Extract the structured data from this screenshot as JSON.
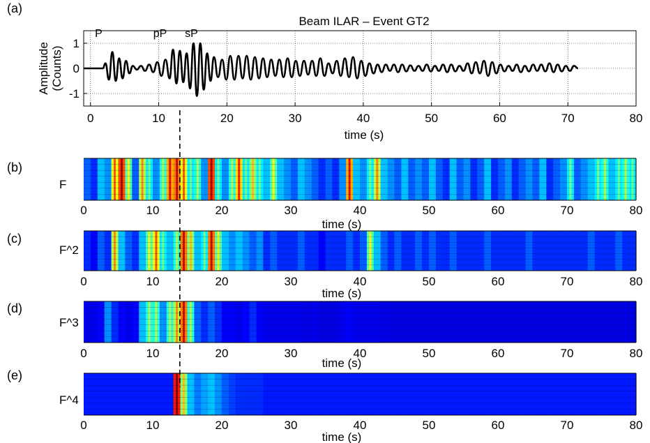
{
  "figure": {
    "dashed_marker_time": 13.1
  },
  "chart_data": [
    {
      "panel_label": "(a)",
      "type": "line",
      "title": "Beam ILAR – Event GT2",
      "xlabel": "time  (s)",
      "ylabel_lines": [
        "Amplitude",
        "(Counts)"
      ],
      "xlim": [
        -1,
        80
      ],
      "ylim": [
        -1.5,
        1.5
      ],
      "xticks": [
        0,
        10,
        20,
        30,
        40,
        50,
        60,
        70,
        80
      ],
      "yticks": [
        -1,
        0,
        1
      ],
      "grid": true,
      "annotations": [
        {
          "text": "P",
          "x": 1.2,
          "y": 1.2
        },
        {
          "text": "pP",
          "x": 10.2,
          "y": 1.2
        },
        {
          "text": "sP",
          "x": 14.8,
          "y": 1.2
        }
      ],
      "series": [
        {
          "color": "#000000",
          "x": [
            -1,
            1.8,
            2.2,
            2.7,
            3.2,
            3.7,
            4.2,
            4.7,
            5.2,
            5.7,
            6.2,
            6.8,
            7.4,
            8.0,
            8.6,
            9.2,
            9.8,
            10.4,
            11.0,
            11.6,
            12.1,
            12.6,
            13.1,
            13.6,
            14.1,
            14.6,
            15.1,
            15.6,
            16.1,
            16.6,
            17.1,
            17.6,
            18.1,
            18.7,
            19.3,
            19.9,
            20.5,
            21.1,
            21.7,
            22.3,
            22.9,
            23.5,
            24.1,
            24.7,
            25.3,
            25.9,
            26.5,
            27.1,
            27.7,
            28.3,
            28.9,
            29.5,
            30.1,
            30.7,
            31.3,
            31.9,
            32.5,
            33.1,
            33.7,
            34.3,
            34.9,
            35.5,
            36.1,
            36.7,
            37.3,
            37.9,
            38.5,
            39.1,
            39.7,
            40.3,
            40.9,
            41.5,
            42.1,
            42.7,
            43.3,
            43.9,
            44.5,
            45.1,
            45.7,
            46.3,
            46.9,
            47.5,
            48.1,
            48.7,
            49.3,
            49.9,
            50.5,
            51.1,
            51.7,
            52.3,
            52.9,
            53.5,
            54.1,
            54.7,
            55.3,
            55.9,
            56.5,
            57.1,
            57.7,
            58.3,
            58.9,
            59.5,
            60.1,
            60.7,
            61.3,
            61.9,
            62.5,
            63.1,
            63.7,
            64.3,
            64.9,
            65.5,
            66.1,
            66.7,
            67.3,
            67.9,
            68.5,
            69.1,
            69.7,
            70.3,
            70.9,
            71.5
          ],
          "y": [
            0,
            0,
            0.2,
            -0.45,
            0.65,
            -0.5,
            0.4,
            -0.4,
            0.3,
            -0.2,
            0.1,
            -0.05,
            0.1,
            -0.1,
            0.15,
            -0.15,
            0.25,
            -0.3,
            0.35,
            -0.4,
            0.75,
            -0.6,
            0.7,
            -0.55,
            0.6,
            -0.8,
            1.0,
            -1.1,
            1.0,
            -0.85,
            0.6,
            -0.5,
            0.45,
            -0.35,
            0.35,
            -0.45,
            0.5,
            -0.45,
            0.5,
            -0.4,
            0.5,
            -0.45,
            0.45,
            -0.4,
            0.4,
            -0.35,
            0.35,
            -0.3,
            0.35,
            -0.35,
            0.4,
            -0.35,
            0.3,
            -0.3,
            0.3,
            -0.25,
            0.3,
            -0.3,
            0.4,
            -0.3,
            0.2,
            -0.2,
            0.3,
            -0.3,
            0.4,
            -0.35,
            0.45,
            -0.4,
            0.3,
            -0.3,
            0.2,
            -0.2,
            0.15,
            -0.15,
            0.15,
            -0.1,
            0.15,
            -0.15,
            0.15,
            -0.12,
            0.12,
            -0.1,
            0.1,
            -0.1,
            0.15,
            -0.12,
            0.1,
            -0.1,
            0.15,
            -0.15,
            0.15,
            -0.12,
            0.1,
            -0.1,
            0.2,
            -0.2,
            0.25,
            -0.2,
            0.3,
            -0.3,
            0.25,
            -0.2,
            0.15,
            -0.12,
            0.1,
            -0.1,
            0.15,
            -0.15,
            0.1,
            -0.12,
            0.15,
            -0.1,
            0.15,
            -0.12,
            0.2,
            -0.15,
            0.15,
            -0.12,
            0.1,
            -0.1,
            0.1,
            0
          ]
        }
      ]
    },
    {
      "panel_label": "(b)",
      "type": "heatmap",
      "row_label": "F",
      "xlabel": "time  (s)",
      "xlim": [
        0,
        80
      ],
      "xticks": [
        0,
        10,
        20,
        30,
        40,
        50,
        60,
        70,
        80
      ],
      "data_start": 0,
      "colormap": [
        "#000080",
        "#0000ff",
        "#00ffff",
        "#ffff00",
        "#ff0000",
        "#800000"
      ],
      "columns": [
        0.35,
        0.3,
        0.45,
        0.4,
        0.75,
        0.95,
        0.6,
        0.35,
        0.7,
        0.5,
        0.4,
        0.55,
        0.85,
        0.9,
        0.75,
        0.5,
        0.55,
        0.4,
        0.95,
        0.5,
        0.4,
        0.55,
        0.8,
        0.5,
        0.65,
        0.5,
        0.45,
        0.6,
        0.45,
        0.4,
        0.35,
        0.45,
        0.4,
        0.35,
        0.3,
        0.35,
        0.3,
        0.4,
        0.85,
        0.45,
        0.4,
        0.5,
        0.7,
        0.45,
        0.4,
        0.35,
        0.45,
        0.35,
        0.4,
        0.35,
        0.45,
        0.35,
        0.3,
        0.45,
        0.35,
        0.4,
        0.3,
        0.35,
        0.45,
        0.3,
        0.35,
        0.4,
        0.3,
        0.35,
        0.4,
        0.35,
        0.45,
        0.3,
        0.35,
        0.4,
        0.5,
        0.35,
        0.4,
        0.45,
        0.5,
        0.55,
        0.45,
        0.5,
        0.55,
        0.5
      ]
    },
    {
      "panel_label": "(c)",
      "type": "heatmap",
      "row_label": "F^2",
      "xlabel": "time  (s)",
      "xlim": [
        0,
        80
      ],
      "xticks": [
        0,
        10,
        20,
        30,
        40,
        50,
        60,
        70,
        80
      ],
      "data_start": 0,
      "colormap": [
        "#000080",
        "#0000ff",
        "#00ffff",
        "#ffff00",
        "#ff0000",
        "#800000"
      ],
      "columns": [
        0.3,
        0.25,
        0.35,
        0.3,
        0.7,
        0.45,
        0.35,
        0.3,
        0.45,
        0.6,
        0.75,
        0.5,
        0.45,
        0.55,
        0.9,
        0.65,
        0.45,
        0.5,
        0.9,
        0.6,
        0.45,
        0.4,
        0.45,
        0.4,
        0.35,
        0.4,
        0.3,
        0.35,
        0.3,
        0.3,
        0.3,
        0.35,
        0.3,
        0.3,
        0.25,
        0.3,
        0.3,
        0.3,
        0.35,
        0.3,
        0.35,
        0.6,
        0.45,
        0.35,
        0.3,
        0.35,
        0.3,
        0.3,
        0.35,
        0.3,
        0.35,
        0.3,
        0.3,
        0.35,
        0.3,
        0.3,
        0.3,
        0.3,
        0.35,
        0.3,
        0.3,
        0.3,
        0.3,
        0.3,
        0.35,
        0.3,
        0.3,
        0.3,
        0.3,
        0.3,
        0.3,
        0.3,
        0.3,
        0.35,
        0.3,
        0.3,
        0.3,
        0.35,
        0.3,
        0.3
      ]
    },
    {
      "panel_label": "(d)",
      "type": "heatmap",
      "row_label": "F^3",
      "xlabel": "time  (s)",
      "xlim": [
        0,
        80
      ],
      "xticks": [
        0,
        10,
        20,
        30,
        40,
        50,
        60,
        70,
        80
      ],
      "data_start": 0,
      "colormap": [
        "#000080",
        "#0000ff",
        "#00ffff",
        "#ffff00",
        "#ff0000",
        "#800000"
      ],
      "columns": [
        0.22,
        0.22,
        0.25,
        0.4,
        0.3,
        0.25,
        0.22,
        0.25,
        0.45,
        0.55,
        0.55,
        0.4,
        0.55,
        0.7,
        0.9,
        0.55,
        0.35,
        0.3,
        0.35,
        0.3,
        0.25,
        0.25,
        0.22,
        0.25,
        0.3,
        0.25,
        0.22,
        0.22,
        0.22,
        0.22,
        0.22,
        0.22,
        0.2,
        0.22,
        0.2,
        0.2,
        0.2,
        0.22,
        0.25,
        0.22,
        0.22,
        0.22,
        0.22,
        0.2,
        0.2,
        0.2,
        0.2,
        0.2,
        0.2,
        0.2,
        0.2,
        0.2,
        0.2,
        0.2,
        0.2,
        0.2,
        0.2,
        0.2,
        0.2,
        0.2,
        0.2,
        0.2,
        0.2,
        0.2,
        0.2,
        0.2,
        0.2,
        0.2,
        0.2,
        0.2,
        0.2,
        0.2,
        0.2,
        0.2,
        0.2,
        0.2,
        0.2,
        0.2,
        0.2,
        0.2
      ]
    },
    {
      "panel_label": "(e)",
      "type": "heatmap",
      "row_label": "F^4",
      "xlabel": "time  (s)",
      "xlim": [
        0,
        80
      ],
      "xticks": [
        0,
        10,
        20,
        30,
        40,
        50,
        60,
        70,
        80
      ],
      "data_start": 0,
      "colormap": [
        "#000080",
        "#0000ff",
        "#00ffff",
        "#ffff00",
        "#ff0000",
        "#800000"
      ],
      "columns": [
        0.28,
        0.28,
        0.28,
        0.28,
        0.28,
        0.28,
        0.28,
        0.28,
        0.28,
        0.28,
        0.28,
        0.28,
        0.28,
        1.0,
        0.65,
        0.45,
        0.38,
        0.42,
        0.45,
        0.4,
        0.35,
        0.32,
        0.3,
        0.3,
        0.3,
        0.3,
        0.28,
        0.28,
        0.28,
        0.28,
        0.28,
        0.28,
        0.28,
        0.28,
        0.28,
        0.28,
        0.28,
        0.28,
        0.28,
        0.28,
        0.28,
        0.28,
        0.28,
        0.28,
        0.28,
        0.28,
        0.28,
        0.28,
        0.28,
        0.28,
        0.28,
        0.28,
        0.28,
        0.28,
        0.28,
        0.28,
        0.28,
        0.28,
        0.28,
        0.28,
        0.28,
        0.28,
        0.28,
        0.28,
        0.28,
        0.28,
        0.28,
        0.28,
        0.28,
        0.28,
        0.28,
        0.28,
        0.28,
        0.28,
        0.28,
        0.28,
        0.28,
        0.28,
        0.28,
        0.28
      ]
    }
  ]
}
